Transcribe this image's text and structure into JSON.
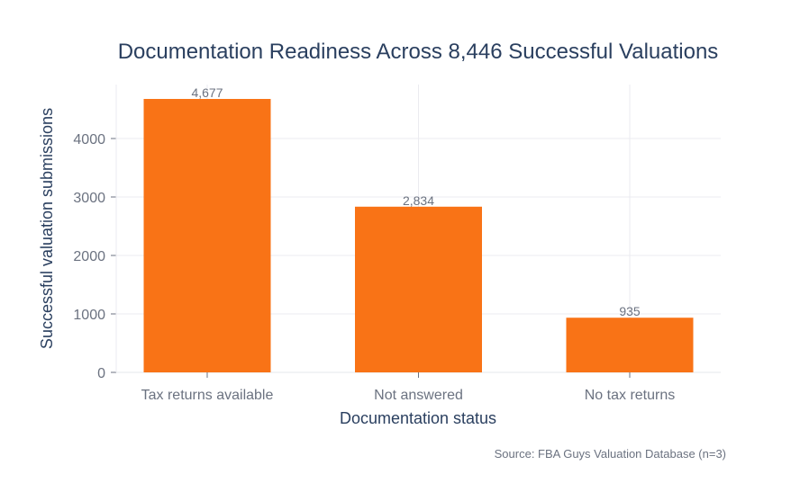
{
  "chart_data": {
    "type": "bar",
    "title": "Documentation Readiness Across 8,446 Successful Valuations",
    "xlabel": "Documentation status",
    "ylabel": "Successful valuation submissions",
    "categories": [
      "Tax returns available",
      "Not answered",
      "No tax returns"
    ],
    "values": [
      4677,
      2834,
      935
    ],
    "data_labels": [
      "4,677",
      "2,834",
      "935"
    ],
    "yticks": [
      0,
      1000,
      2000,
      3000,
      4000
    ],
    "ylim": [
      0,
      4923
    ],
    "grid": true,
    "bar_color": "#f97316",
    "source": "Source: FBA Guys Valuation Database (n=3)"
  }
}
